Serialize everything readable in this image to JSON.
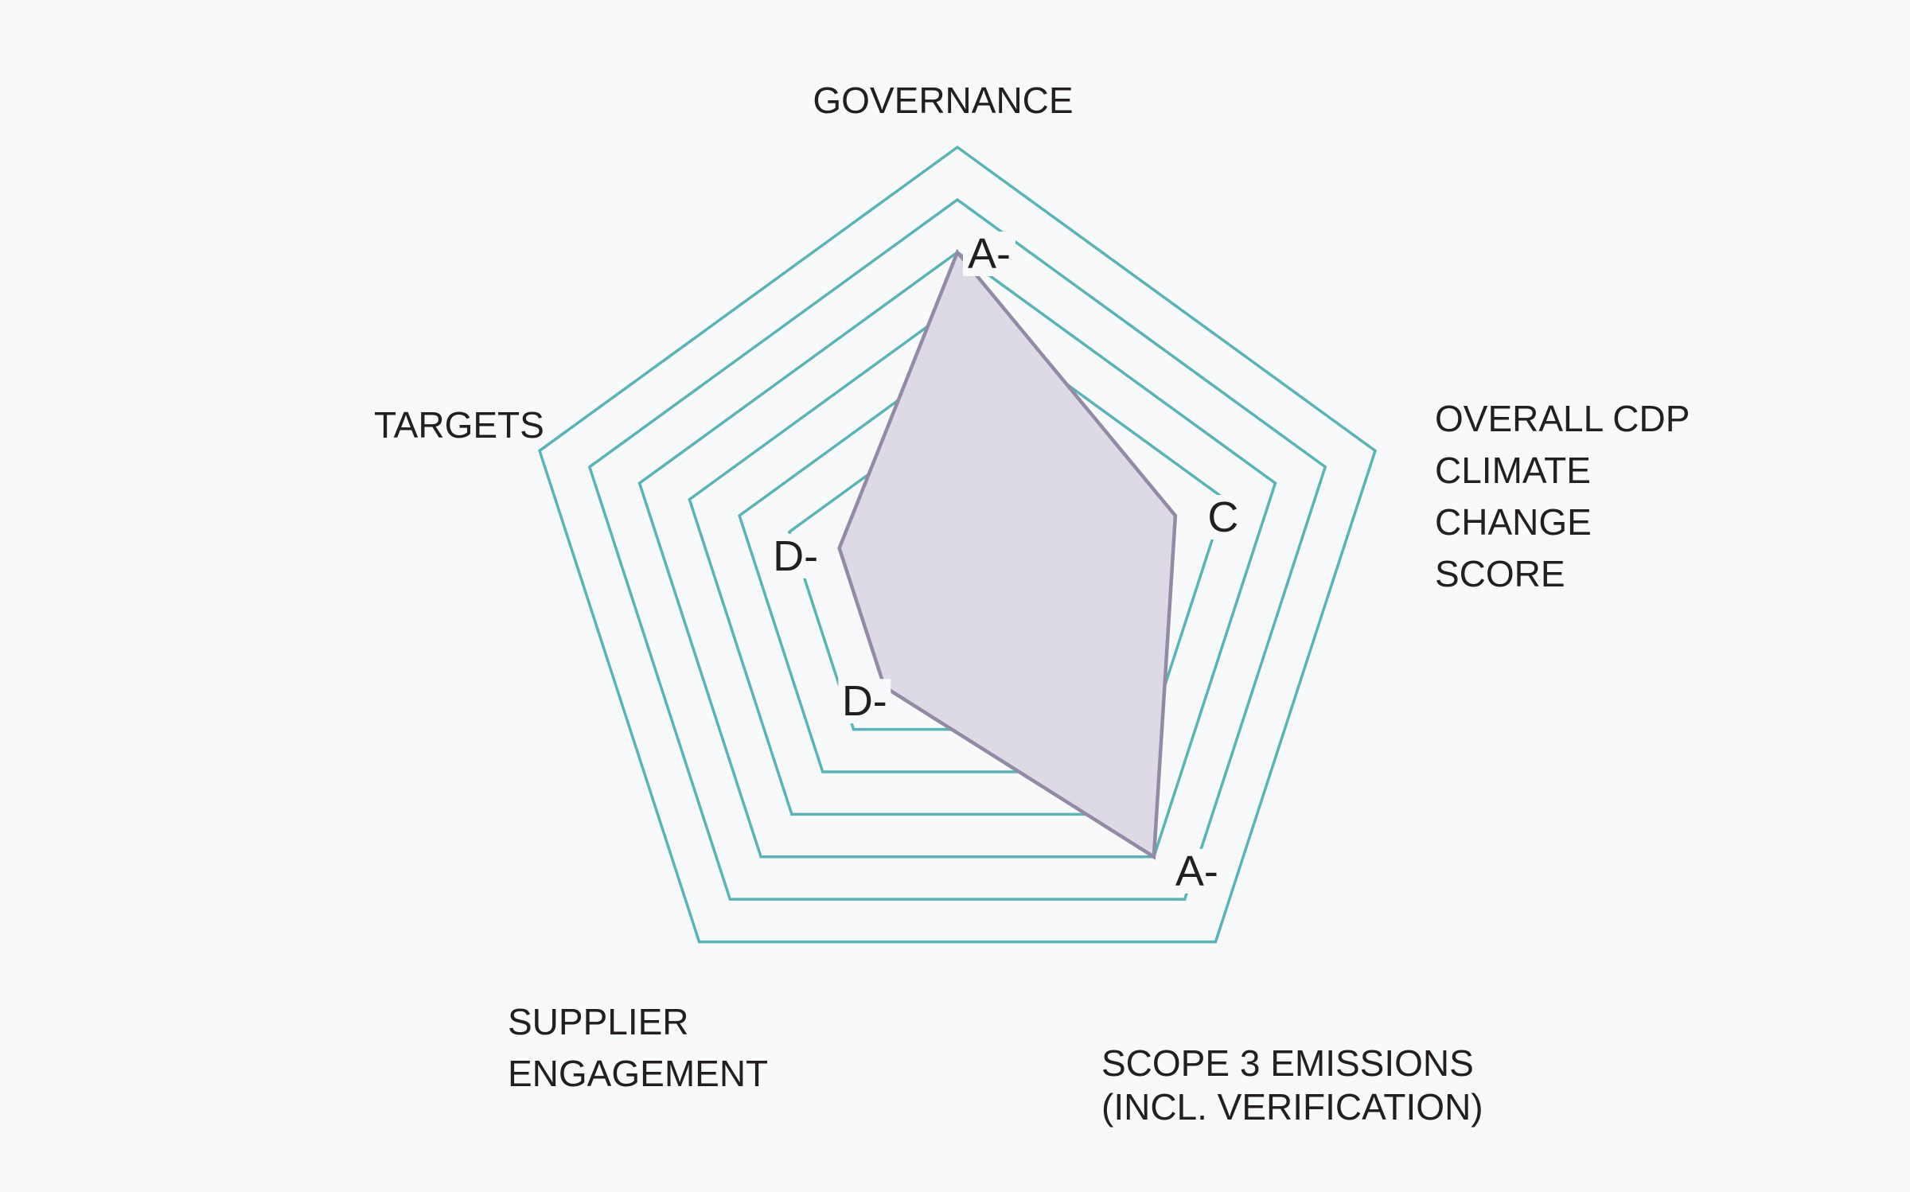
{
  "chart_data": {
    "type": "radar",
    "scale": [
      "D-",
      "D",
      "C",
      "B",
      "A-",
      "A"
    ],
    "axes": [
      {
        "name": [
          "GOVERNANCE"
        ],
        "score": "A-"
      },
      {
        "name": [
          "OVERALL CDP",
          "CLIMATE",
          "CHANGE",
          "SCORE"
        ],
        "score": "C"
      },
      {
        "name": [
          "SCOPE 3 EMISSIONS",
          "(INCL. VERIFICATION)"
        ],
        "score": "A-"
      },
      {
        "name": [
          "SUPPLIER",
          "ENGAGEMENT"
        ],
        "score": "D-"
      },
      {
        "name": [
          "TARGETS"
        ],
        "score": "D-"
      }
    ],
    "colors": {
      "grid": "#5bb3b5",
      "area_fill": "#ddd9e5",
      "area_stroke": "#938aa5",
      "background": "#f8f9fa"
    }
  }
}
